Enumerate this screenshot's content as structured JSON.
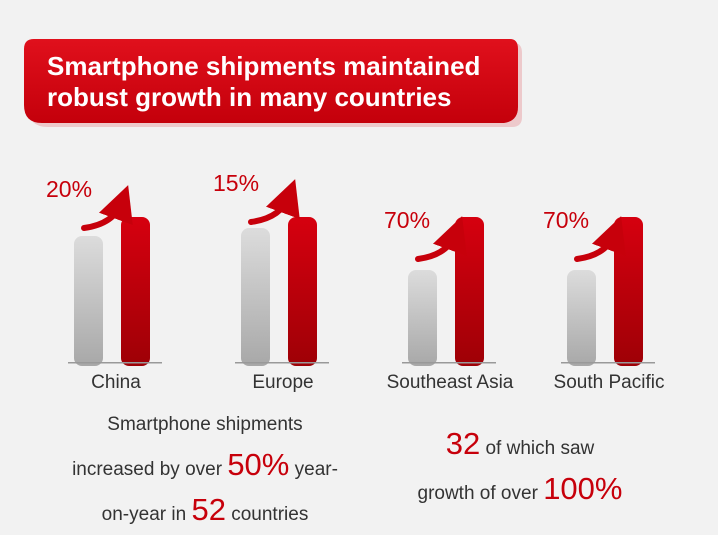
{
  "banner": {
    "line1": "Smartphone shipments maintained",
    "line2": "robust growth in many countries",
    "color": "#d6000f"
  },
  "chart_data": {
    "type": "bar",
    "categories": [
      "China",
      "Europe",
      "Southeast Asia",
      "South Pacific"
    ],
    "growth_labels": [
      "20%",
      "15%",
      "70%",
      "70%"
    ],
    "growth_pct": [
      20,
      15,
      70,
      70
    ],
    "colors": {
      "before": "#c8c8c8",
      "after": "#c7000b"
    }
  },
  "summary": {
    "left": {
      "line1": "Smartphone shipments",
      "line2_pre": "increased by over",
      "line2_big": "50%",
      "line2_post": "year-",
      "line3_pre": "on-year in",
      "line3_big": "52",
      "line3_post": "countries"
    },
    "right": {
      "line1_big": "32",
      "line1_post": "of which saw",
      "line2_pre": "growth of over",
      "line2_big": "100%"
    }
  }
}
